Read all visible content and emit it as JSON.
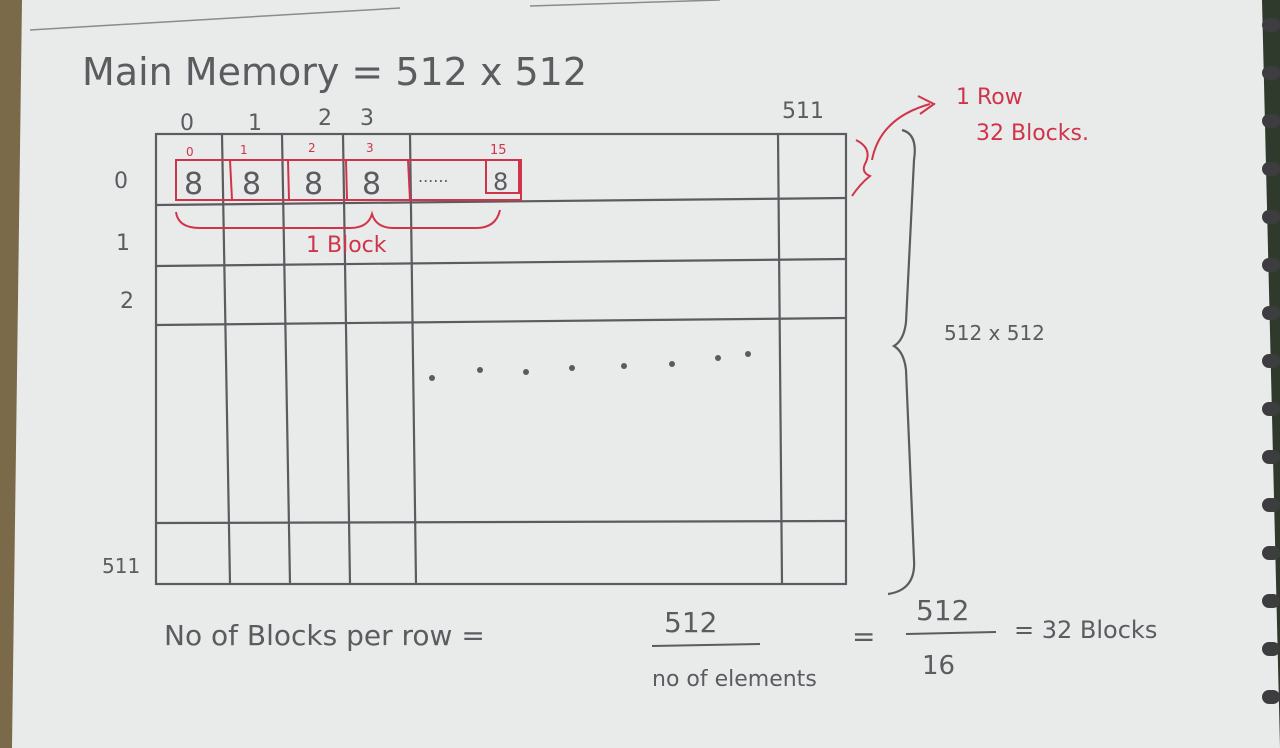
{
  "heading": {
    "text": "Main Memory = 512 x 512"
  },
  "column_labels": [
    "0",
    "1",
    "2",
    "3",
    "511"
  ],
  "row_labels": [
    "0",
    "1",
    "2",
    "511"
  ],
  "block": {
    "element_indices": [
      "0",
      "1",
      "2",
      "3",
      "15"
    ],
    "cells": [
      "8",
      "8",
      "8",
      "8",
      "8"
    ],
    "ellipsis": "......",
    "brace_label": "1 Block"
  },
  "row_annotation": {
    "line1": "1 Row",
    "line2": "32 Blocks."
  },
  "size_annotation": "512 x 512",
  "formula": {
    "lhs": "No of Blocks per row =",
    "num1": "512",
    "den1": "no of elements",
    "eq2": "=",
    "num2": "512",
    "den2": "16",
    "result": "= 32 Blocks"
  },
  "colors": {
    "pencil": "#5b5b60",
    "pen": "#d0344a",
    "paper": "#e9ebeb"
  }
}
